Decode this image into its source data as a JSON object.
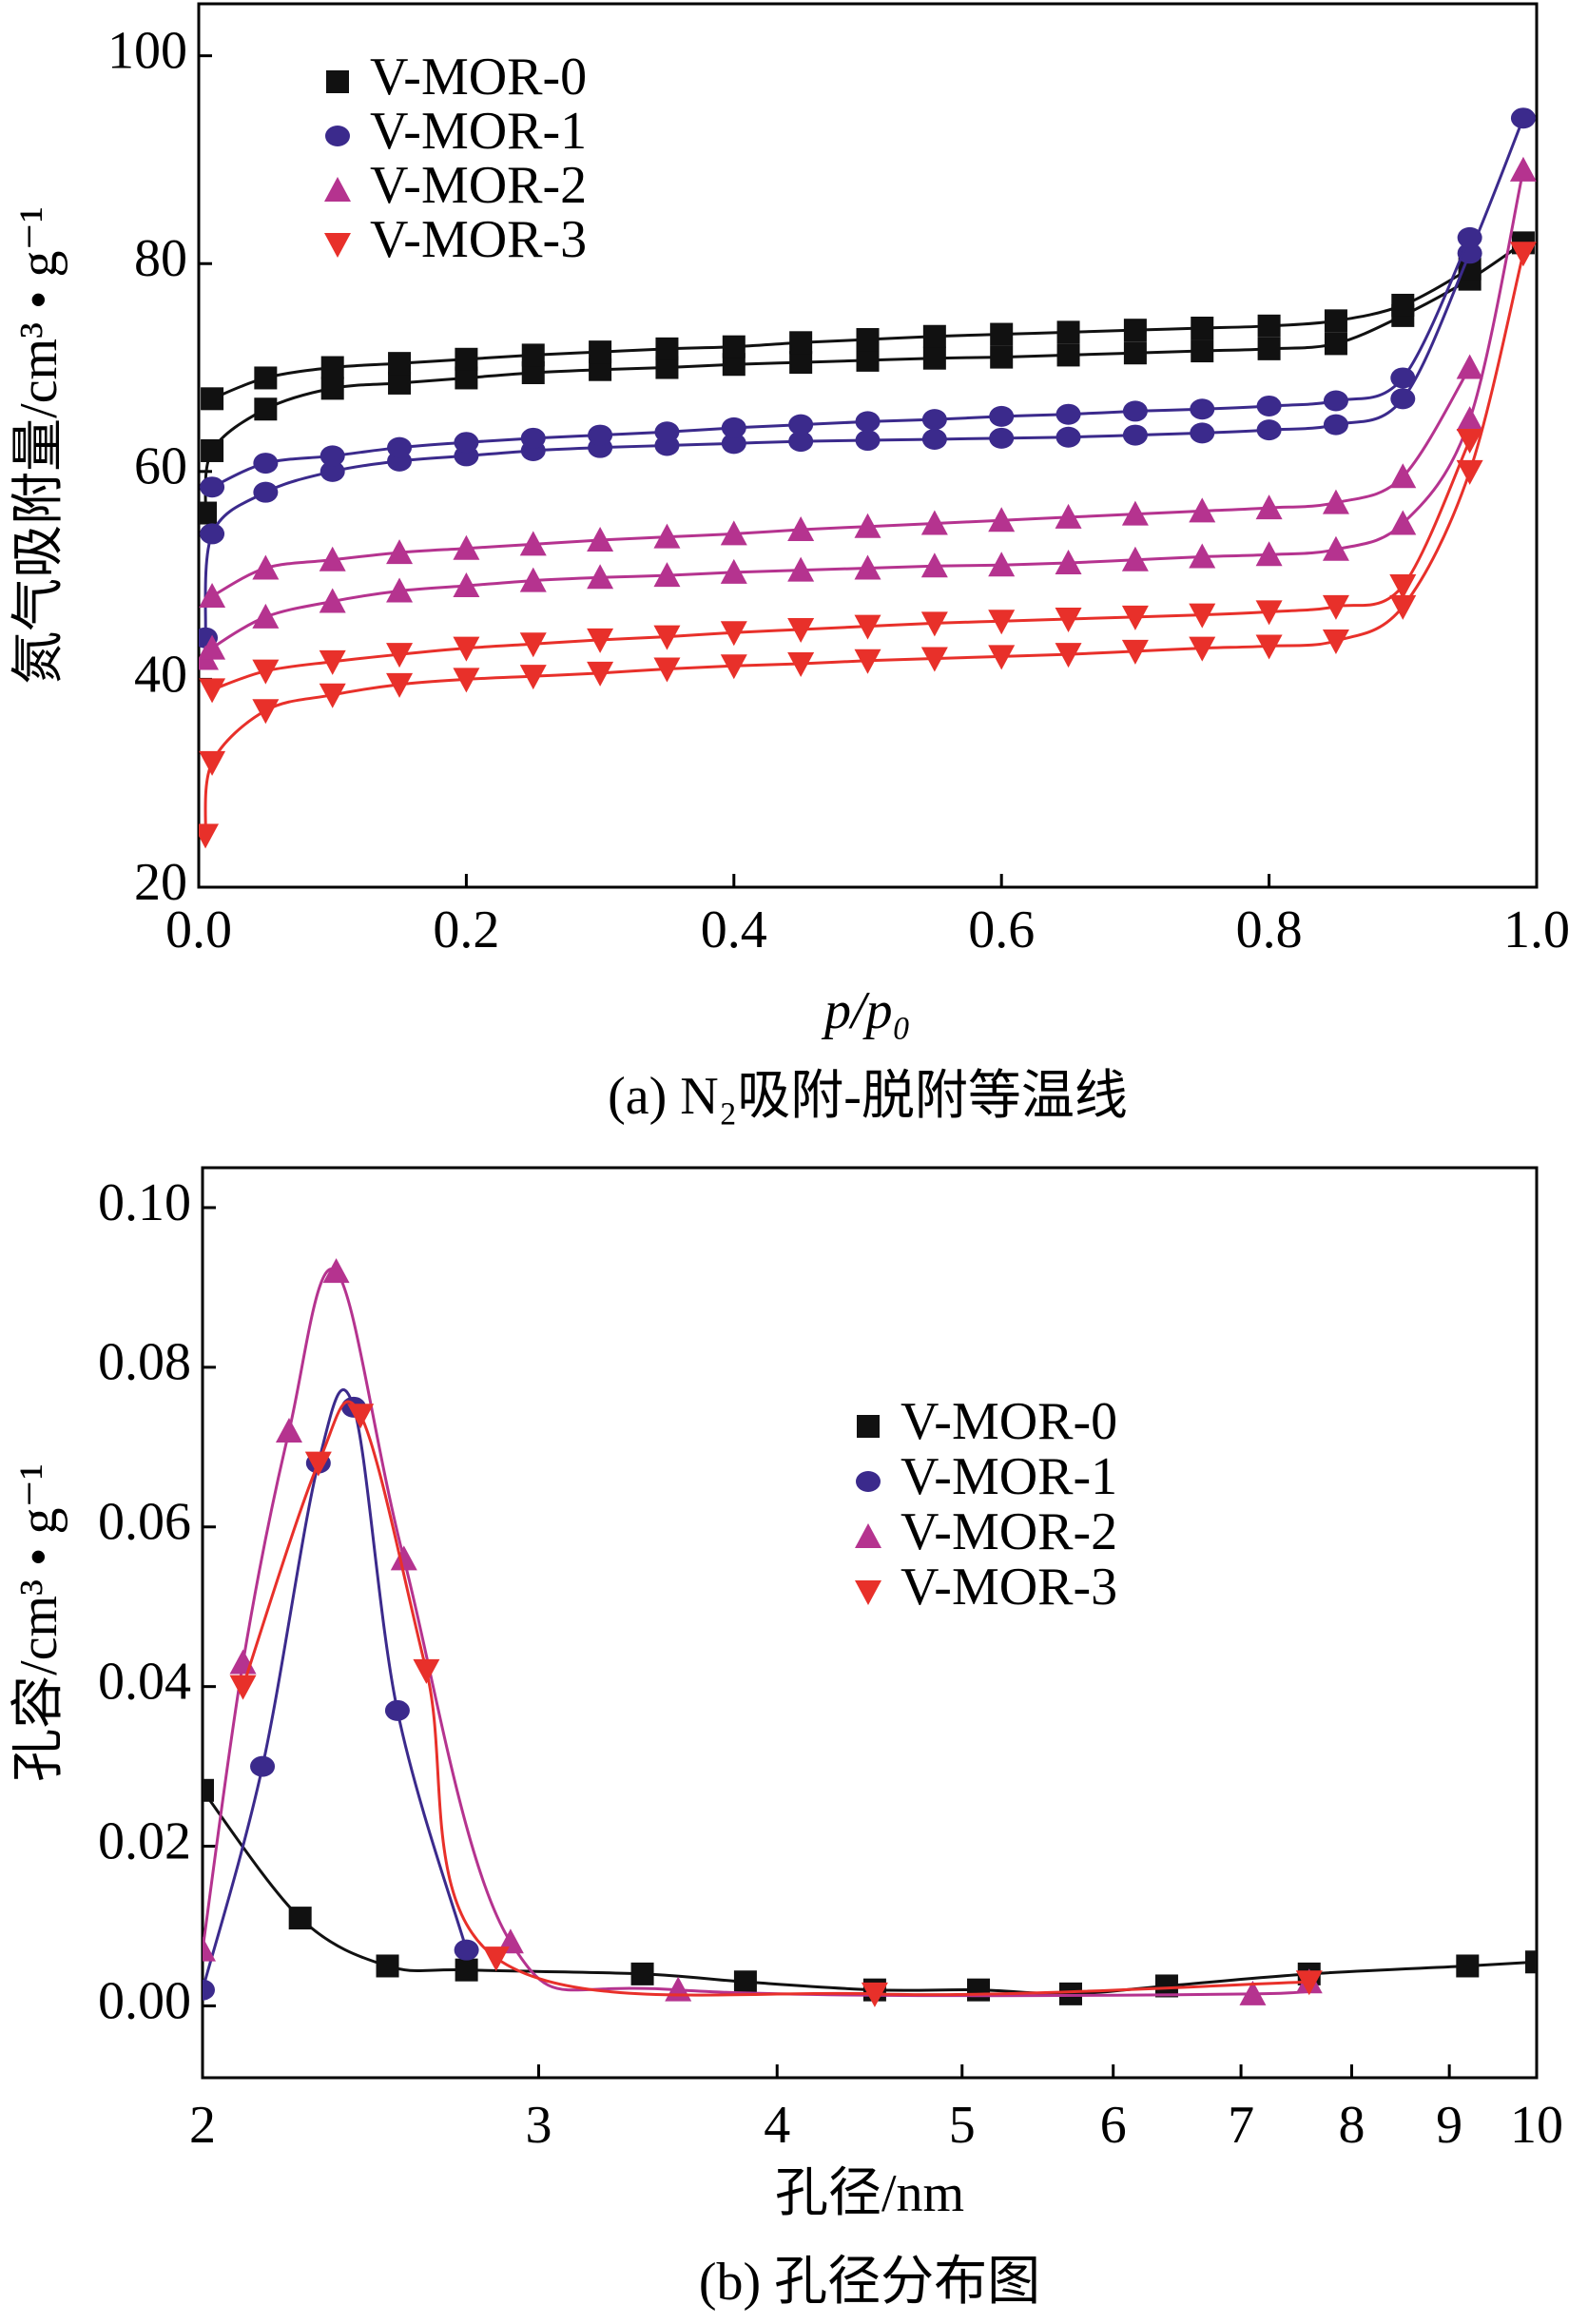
{
  "chart_data": [
    {
      "type": "line",
      "x_label": "p/p₀",
      "y_label": "氮气吸附量/cm³ • g⁻¹",
      "caption": "(a) N₂吸附-脱附等温线",
      "xlim": [
        0,
        1
      ],
      "ylim": [
        20,
        105
      ],
      "xticks": [
        {
          "value": 0,
          "label": "0.0"
        },
        0.2,
        0.4,
        0.6,
        0.8,
        {
          "value": 1,
          "label": "1.0"
        }
      ],
      "yticks": [
        20,
        40,
        60,
        80,
        100
      ],
      "legend_loc": "upper left",
      "series": [
        {
          "name": "V-MOR-0",
          "color": "#111111",
          "marker": "square",
          "x": [
            0.005,
            0.01,
            0.05,
            0.1,
            0.15,
            0.2,
            0.25,
            0.3,
            0.35,
            0.4,
            0.45,
            0.5,
            0.55,
            0.6,
            0.65,
            0.7,
            0.75,
            0.8,
            0.85,
            0.9,
            0.95,
            0.99
          ],
          "values": [
            56,
            62,
            66,
            68,
            68.5,
            69,
            69.5,
            69.8,
            70,
            70.3,
            70.5,
            70.7,
            70.9,
            71,
            71.2,
            71.4,
            71.6,
            71.8,
            72.3,
            75,
            78.5,
            82
          ],
          "x_desorption": [
            0.95,
            0.9,
            0.85,
            0.8,
            0.75,
            0.7,
            0.65,
            0.6,
            0.55,
            0.5,
            0.45,
            0.4,
            0.35,
            0.3,
            0.25,
            0.2,
            0.15,
            0.1,
            0.05,
            0.01
          ],
          "values_desorption": [
            79.5,
            76,
            74.5,
            74,
            73.8,
            73.6,
            73.4,
            73.2,
            73,
            72.7,
            72.4,
            72,
            71.8,
            71.5,
            71.2,
            70.8,
            70.4,
            70,
            69,
            67
          ]
        },
        {
          "name": "V-MOR-1",
          "color": "#3b2a8c",
          "marker": "circle",
          "x": [
            0.005,
            0.01,
            0.05,
            0.1,
            0.15,
            0.2,
            0.25,
            0.3,
            0.35,
            0.4,
            0.45,
            0.5,
            0.55,
            0.6,
            0.65,
            0.7,
            0.75,
            0.8,
            0.85,
            0.9,
            0.95,
            0.99
          ],
          "values": [
            44,
            54,
            58,
            60,
            61,
            61.5,
            62,
            62.3,
            62.5,
            62.7,
            62.9,
            63,
            63.1,
            63.2,
            63.3,
            63.5,
            63.7,
            64,
            64.5,
            67,
            81,
            94
          ],
          "x_desorption": [
            0.95,
            0.9,
            0.85,
            0.8,
            0.75,
            0.7,
            0.65,
            0.6,
            0.55,
            0.5,
            0.45,
            0.4,
            0.35,
            0.3,
            0.25,
            0.2,
            0.15,
            0.1,
            0.05,
            0.01
          ],
          "values_desorption": [
            82.5,
            69,
            66.8,
            66.3,
            66,
            65.8,
            65.5,
            65.3,
            65,
            64.8,
            64.5,
            64.2,
            63.8,
            63.5,
            63.2,
            62.8,
            62.3,
            61.5,
            60.8,
            58.5
          ]
        },
        {
          "name": "V-MOR-2",
          "color": "#b5338f",
          "marker": "triangle-up",
          "x": [
            0.005,
            0.01,
            0.05,
            0.1,
            0.15,
            0.2,
            0.25,
            0.3,
            0.35,
            0.4,
            0.45,
            0.5,
            0.55,
            0.6,
            0.65,
            0.7,
            0.75,
            0.8,
            0.85,
            0.9,
            0.95,
            0.99
          ],
          "values": [
            42,
            43,
            46,
            47.5,
            48.5,
            49,
            49.5,
            49.8,
            50,
            50.3,
            50.5,
            50.7,
            50.9,
            51,
            51.2,
            51.5,
            51.8,
            52,
            52.5,
            55,
            65,
            89
          ],
          "x_desorption": [
            0.95,
            0.9,
            0.85,
            0.8,
            0.75,
            0.7,
            0.65,
            0.6,
            0.55,
            0.5,
            0.45,
            0.4,
            0.35,
            0.3,
            0.25,
            0.2,
            0.15,
            0.1,
            0.05,
            0.01
          ],
          "values_desorption": [
            70,
            59.5,
            57,
            56.5,
            56.2,
            55.9,
            55.6,
            55.3,
            55,
            54.7,
            54.4,
            54,
            53.7,
            53.4,
            53,
            52.6,
            52.2,
            51.5,
            50.7,
            48
          ]
        },
        {
          "name": "V-MOR-3",
          "color": "#e8302a",
          "marker": "triangle-down",
          "x": [
            0.005,
            0.01,
            0.05,
            0.1,
            0.15,
            0.2,
            0.25,
            0.3,
            0.35,
            0.4,
            0.45,
            0.5,
            0.55,
            0.6,
            0.65,
            0.7,
            0.75,
            0.8,
            0.85,
            0.9,
            0.95,
            0.99
          ],
          "values": [
            25,
            32,
            37,
            38.5,
            39.5,
            40,
            40.3,
            40.6,
            41,
            41.3,
            41.5,
            41.8,
            42,
            42.2,
            42.4,
            42.7,
            43,
            43.2,
            43.7,
            47,
            60,
            81
          ],
          "x_desorption": [
            0.95,
            0.9,
            0.85,
            0.8,
            0.75,
            0.7,
            0.65,
            0.6,
            0.55,
            0.5,
            0.45,
            0.4,
            0.35,
            0.3,
            0.25,
            0.2,
            0.15,
            0.1,
            0.05,
            0.01
          ],
          "values_desorption": [
            63,
            49,
            47,
            46.5,
            46.2,
            46,
            45.8,
            45.6,
            45.4,
            45.1,
            44.8,
            44.5,
            44.1,
            43.8,
            43.4,
            43,
            42.4,
            41.7,
            40.8,
            39
          ]
        }
      ]
    },
    {
      "type": "line",
      "x_label": "孔径/nm",
      "y_label": "孔容/cm³ • g⁻¹",
      "caption": "(b) 孔径分布图",
      "x_scale": "log",
      "xlim": [
        2,
        10
      ],
      "ylim": [
        -0.009,
        0.105
      ],
      "xticks": [
        2,
        3,
        4,
        5,
        6,
        7,
        8,
        9,
        10
      ],
      "yticks": [
        {
          "value": 0,
          "label": "0.00"
        },
        {
          "value": 0.02,
          "label": "0.02"
        },
        {
          "value": 0.04,
          "label": "0.04"
        },
        {
          "value": 0.06,
          "label": "0.06"
        },
        {
          "value": 0.08,
          "label": "0.08"
        },
        {
          "value": 0.1,
          "label": "0.10"
        }
      ],
      "legend_loc": "center right",
      "series": [
        {
          "name": "V-MOR-0",
          "color": "#111111",
          "marker": "square",
          "x": [
            2,
            2.25,
            2.5,
            2.75,
            3.4,
            3.85,
            4.5,
            5.1,
            5.7,
            6.4,
            7.6,
            9.2,
            10
          ],
          "values": [
            0.027,
            0.011,
            0.005,
            0.0045,
            0.004,
            0.003,
            0.002,
            0.002,
            0.0015,
            0.0025,
            0.004,
            0.005,
            0.0055
          ]
        },
        {
          "name": "V-MOR-1",
          "color": "#3b2a8c",
          "marker": "circle",
          "x": [
            2,
            2.15,
            2.3,
            2.4,
            2.53,
            2.75
          ],
          "values": [
            0.002,
            0.03,
            0.068,
            0.075,
            0.037,
            0.007
          ]
        },
        {
          "name": "V-MOR-2",
          "color": "#b5338f",
          "marker": "triangle-up",
          "x": [
            2,
            2.1,
            2.22,
            2.35,
            2.55,
            2.9,
            3.55,
            7.1,
            7.6
          ],
          "values": [
            0.007,
            0.043,
            0.072,
            0.092,
            0.056,
            0.008,
            0.002,
            0.0015,
            0.003
          ]
        },
        {
          "name": "V-MOR-3",
          "color": "#e8302a",
          "marker": "triangle-down",
          "x": [
            2.1,
            2.3,
            2.42,
            2.62,
            2.85,
            4.5,
            7.6
          ],
          "values": [
            0.04,
            0.068,
            0.074,
            0.042,
            0.006,
            0.0015,
            0.003
          ]
        }
      ]
    }
  ]
}
